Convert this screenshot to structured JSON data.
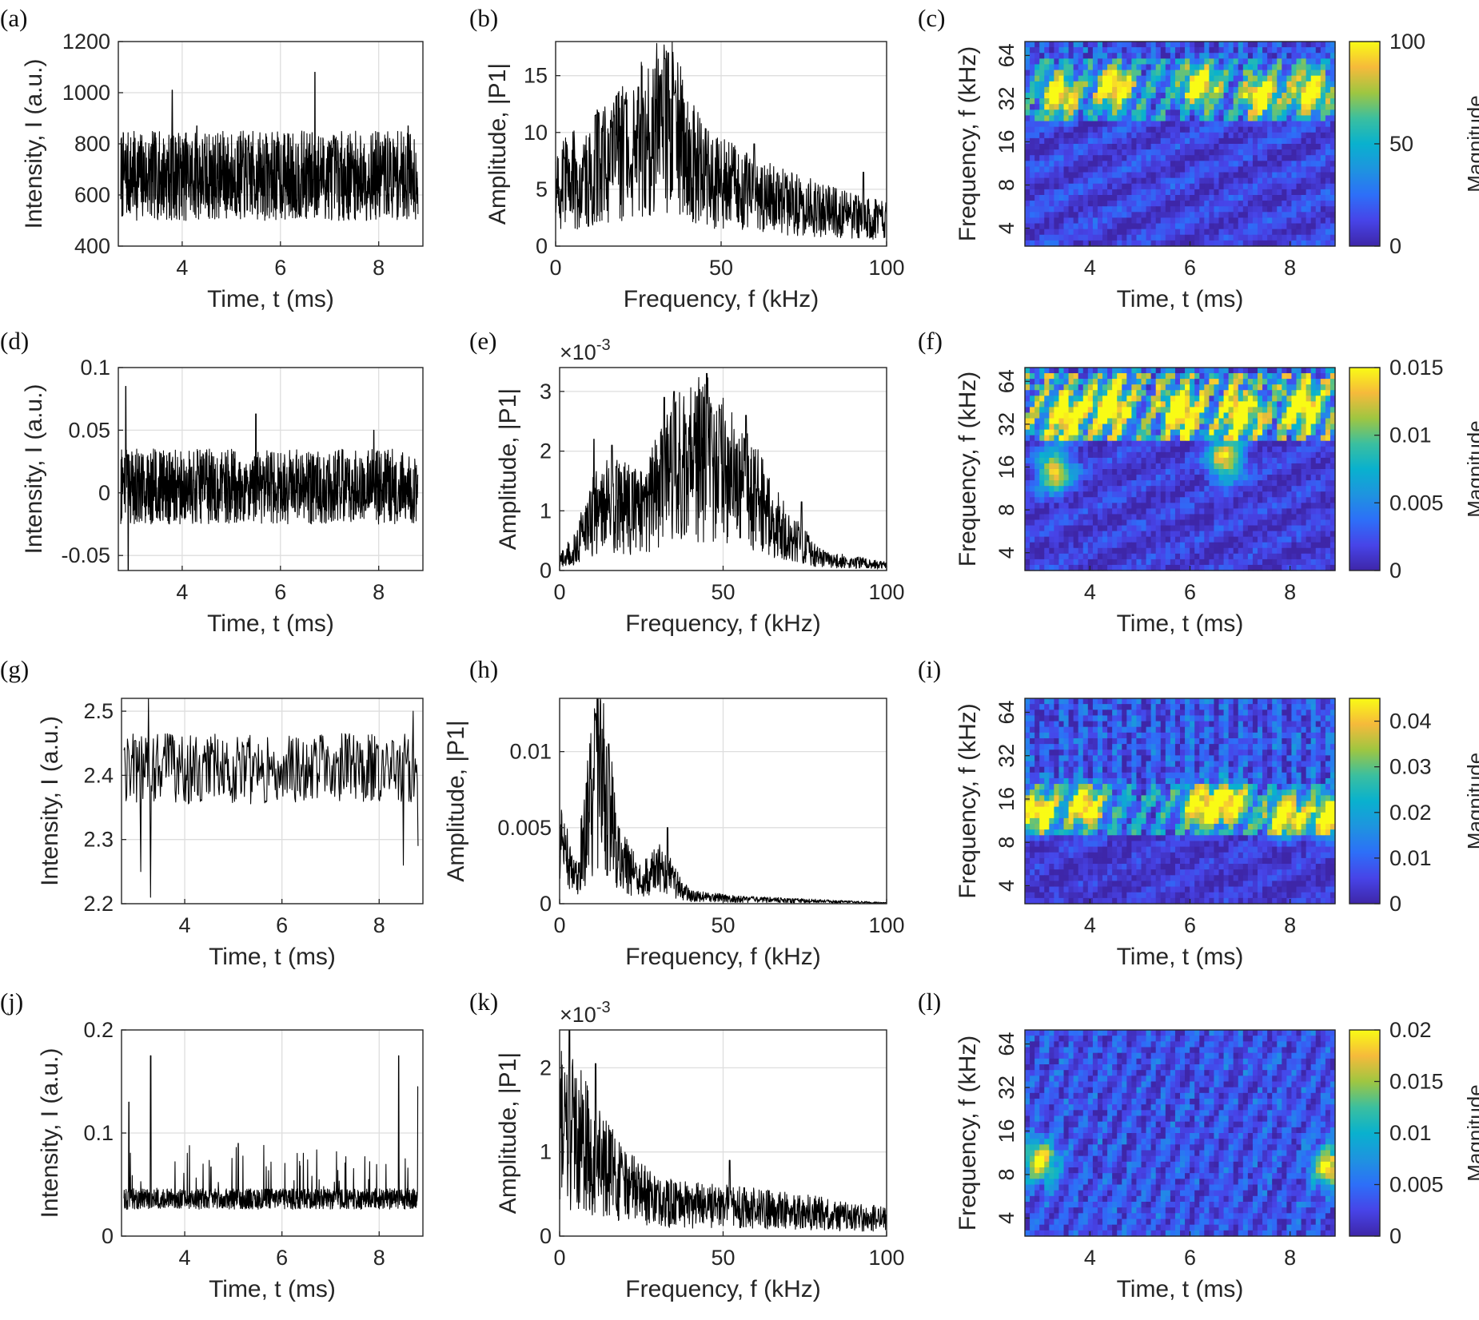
{
  "chart_data": [
    {
      "id": "a",
      "type": "line",
      "panel_label": "(a)",
      "xlabel": "Time, t (ms)",
      "ylabel": "Intensity, I (a.u.)",
      "xlim": [
        2.7,
        8.9
      ],
      "ylim": [
        400,
        1200
      ],
      "xticks": [
        4,
        6,
        8
      ],
      "yticks": [
        400,
        600,
        800,
        1000,
        1200
      ],
      "grid": true,
      "series": [
        {
          "baseline": 675,
          "amplitude": 175,
          "noise": "dense",
          "peaks": [
            [
              3.8,
              1010
            ],
            [
              6.7,
              1080
            ],
            [
              4.3,
              870
            ],
            [
              8.6,
              870
            ]
          ],
          "min": 500
        }
      ]
    },
    {
      "id": "b",
      "type": "line",
      "panel_label": "(b)",
      "xlabel": "Frequency, f (kHz)",
      "ylabel": "Amplitude, |P1|",
      "xlim": [
        0,
        100
      ],
      "ylim": [
        0,
        18
      ],
      "xticks": [
        0,
        50,
        100
      ],
      "yticks": [
        0,
        5,
        10,
        15
      ],
      "grid": true,
      "series": [
        {
          "envelope": [
            [
              0,
              5
            ],
            [
              10,
              6.5
            ],
            [
              20,
              8
            ],
            [
              34,
              11
            ],
            [
              45,
              6
            ],
            [
              60,
              4.5
            ],
            [
              80,
              3.2
            ],
            [
              100,
              2.2
            ]
          ],
          "peaks": [
            [
              12,
              11.5
            ],
            [
              21,
              12.5
            ],
            [
              25,
              14
            ],
            [
              33,
              16.5
            ],
            [
              34,
              17
            ],
            [
              36,
              13.5
            ],
            [
              60,
              9
            ],
            [
              93,
              6.5
            ]
          ]
        }
      ]
    },
    {
      "id": "c",
      "type": "heatmap",
      "panel_label": "(c)",
      "xlabel": "Time, t (ms)",
      "ylabel": "Frequency, f (kHz)",
      "xlim": [
        2.7,
        8.9
      ],
      "ylim": [
        3,
        80
      ],
      "yscale": "log2",
      "xticks": [
        4,
        6,
        8
      ],
      "yticks": [
        4,
        8,
        16,
        32,
        64
      ],
      "clim": [
        0,
        100
      ],
      "cticks": [
        0,
        50,
        100
      ],
      "clabel": "Magnitude",
      "pattern": {
        "band_lo": 22,
        "band_hi": 60,
        "band_level": 0.6,
        "low_level": 0.18,
        "hot": [
          [
            3.4,
            34
          ],
          [
            4.5,
            38
          ],
          [
            6.2,
            40
          ],
          [
            7.4,
            34
          ],
          [
            8.4,
            36
          ]
        ]
      }
    },
    {
      "id": "d",
      "type": "line",
      "panel_label": "(d)",
      "xlabel": "Time, t (ms)",
      "ylabel": "Intensity, I (a.u.)",
      "xlim": [
        2.7,
        8.9
      ],
      "ylim": [
        -0.062,
        0.1
      ],
      "xticks": [
        4,
        6,
        8
      ],
      "yticks": [
        -0.05,
        0,
        0.05,
        0.1
      ],
      "grid": true,
      "series": [
        {
          "baseline": 0.005,
          "amplitude": 0.03,
          "noise": "dense",
          "peaks": [
            [
              2.85,
              0.085
            ],
            [
              5.5,
              0.063
            ],
            [
              7.9,
              0.05
            ],
            [
              2.9,
              -0.062
            ]
          ]
        }
      ]
    },
    {
      "id": "e",
      "type": "line",
      "panel_label": "(e)",
      "xlabel": "Frequency, f (kHz)",
      "ylabel": "Amplitude, |P1|",
      "xlim": [
        0,
        100
      ],
      "ylim": [
        0,
        3.4
      ],
      "xticks": [
        0,
        50,
        100
      ],
      "yticks": [
        0,
        1,
        2,
        3
      ],
      "grid": true,
      "multiplier": "×10-3",
      "series": [
        {
          "envelope": [
            [
              0,
              0.15
            ],
            [
              5,
              0.4
            ],
            [
              12,
              1.1
            ],
            [
              25,
              1
            ],
            [
              35,
              1.7
            ],
            [
              45,
              1.9
            ],
            [
              60,
              1.2
            ],
            [
              70,
              0.6
            ],
            [
              80,
              0.2
            ],
            [
              100,
              0.08
            ]
          ],
          "peaks": [
            [
              10.5,
              2.2
            ],
            [
              16,
              2.1
            ],
            [
              32,
              2.9
            ],
            [
              35,
              3.0
            ],
            [
              45,
              3.3
            ],
            [
              49,
              2.7
            ],
            [
              57,
              2.6
            ],
            [
              74,
              1.15
            ]
          ]
        }
      ]
    },
    {
      "id": "f",
      "type": "heatmap",
      "panel_label": "(f)",
      "xlabel": "Time, t (ms)",
      "ylabel": "Frequency, f (kHz)",
      "xlim": [
        2.7,
        8.9
      ],
      "ylim": [
        3,
        80
      ],
      "yscale": "log2",
      "xticks": [
        4,
        6,
        8
      ],
      "yticks": [
        4,
        8,
        16,
        32,
        64
      ],
      "clim": [
        0,
        0.015
      ],
      "cticks": [
        0,
        0.005,
        0.01,
        0.015
      ],
      "clabel": "Magnitude",
      "pattern": {
        "band_lo": 24,
        "band_hi": 70,
        "band_level": 0.85,
        "low_level": 0.15,
        "hot": [
          [
            3.5,
            36
          ],
          [
            4.4,
            42
          ],
          [
            5.8,
            40
          ],
          [
            7.0,
            38
          ],
          [
            8.3,
            42
          ],
          [
            3.3,
            15
          ],
          [
            6.7,
            18
          ]
        ]
      }
    },
    {
      "id": "g",
      "type": "line",
      "panel_label": "(g)",
      "xlabel": "Time, t (ms)",
      "ylabel": "Intensity, I (a.u.)",
      "xlim": [
        2.7,
        8.9
      ],
      "ylim": [
        2.2,
        2.52
      ],
      "xticks": [
        4,
        6,
        8
      ],
      "yticks": [
        2.2,
        2.3,
        2.4,
        2.5
      ],
      "grid": true,
      "series": [
        {
          "baseline": 2.41,
          "amplitude": 0.055,
          "noise": "oscillating",
          "peaks": [
            [
              3.3,
              2.21
            ],
            [
              3.1,
              2.25
            ],
            [
              8.5,
              2.26
            ],
            [
              8.8,
              2.29
            ],
            [
              3.25,
              2.52
            ],
            [
              8.7,
              2.5
            ]
          ]
        }
      ]
    },
    {
      "id": "h",
      "type": "line",
      "panel_label": "(h)",
      "xlabel": "Frequency, f (kHz)",
      "ylabel": "Amplitude, |P1|",
      "xlim": [
        0,
        100
      ],
      "ylim": [
        0,
        0.0135
      ],
      "xticks": [
        0,
        50,
        100
      ],
      "yticks": [
        0,
        0.005,
        0.01
      ],
      "grid": true,
      "series": [
        {
          "envelope": [
            [
              0,
              0.004
            ],
            [
              5,
              0.0015
            ],
            [
              10,
              0.007
            ],
            [
              13,
              0.009
            ],
            [
              18,
              0.003
            ],
            [
              25,
              0.0015
            ],
            [
              30,
              0.0025
            ],
            [
              40,
              0.0005
            ],
            [
              55,
              0.0003
            ],
            [
              100,
              5e-05
            ]
          ],
          "peaks": [
            [
              11,
              0.0125
            ],
            [
              11.5,
              0.0135
            ],
            [
              15,
              0.0105
            ],
            [
              33,
              0.005
            ]
          ]
        }
      ]
    },
    {
      "id": "i",
      "type": "heatmap",
      "panel_label": "(i)",
      "xlabel": "Time, t (ms)",
      "ylabel": "Frequency, f (kHz)",
      "xlim": [
        2.7,
        8.9
      ],
      "ylim": [
        3,
        80
      ],
      "yscale": "log2",
      "xticks": [
        4,
        6,
        8
      ],
      "yticks": [
        4,
        8,
        16,
        32,
        64
      ],
      "clim": [
        0,
        0.045
      ],
      "cticks": [
        0,
        0.01,
        0.02,
        0.03,
        0.04
      ],
      "clabel": "Magnitude",
      "pattern": {
        "band_lo": 9,
        "band_hi": 20,
        "band_level": 0.6,
        "low_level": 0.12,
        "hot": [
          [
            3.0,
            13
          ],
          [
            3.9,
            14
          ],
          [
            6.2,
            14
          ],
          [
            6.8,
            15
          ],
          [
            7.9,
            12
          ],
          [
            8.75,
            12
          ]
        ]
      }
    },
    {
      "id": "j",
      "type": "line",
      "panel_label": "(j)",
      "xlabel": "Time, t (ms)",
      "ylabel": "Intensity, I (a.u.)",
      "xlim": [
        2.7,
        8.9
      ],
      "ylim": [
        0,
        0.2
      ],
      "xticks": [
        4,
        6,
        8
      ],
      "yticks": [
        0,
        0.1,
        0.2
      ],
      "grid": true,
      "series": [
        {
          "baseline": 0.035,
          "amplitude": 0.02,
          "noise": "spiky",
          "peaks": [
            [
              3.3,
              0.175
            ],
            [
              2.85,
              0.13
            ],
            [
              8.4,
              0.175
            ],
            [
              8.8,
              0.145
            ],
            [
              5.1,
              0.09
            ]
          ]
        }
      ]
    },
    {
      "id": "k",
      "type": "line",
      "panel_label": "(k)",
      "xlabel": "Frequency, f (kHz)",
      "ylabel": "Amplitude, |P1|",
      "xlim": [
        0,
        100
      ],
      "ylim": [
        0,
        2.45
      ],
      "xticks": [
        0,
        50,
        100
      ],
      "yticks": [
        0,
        1,
        2
      ],
      "grid": true,
      "multiplier": "×10-3",
      "series": [
        {
          "envelope": [
            [
              0,
              1.3
            ],
            [
              5,
              1.2
            ],
            [
              12,
              0.9
            ],
            [
              20,
              0.6
            ],
            [
              30,
              0.4
            ],
            [
              50,
              0.35
            ],
            [
              70,
              0.3
            ],
            [
              100,
              0.2
            ]
          ],
          "peaks": [
            [
              3,
              2.45
            ],
            [
              11,
              2.05
            ],
            [
              16,
              1.2
            ],
            [
              52,
              0.9
            ]
          ]
        }
      ]
    },
    {
      "id": "l",
      "type": "heatmap",
      "panel_label": "(l)",
      "xlabel": "Time, t (ms)",
      "ylabel": "Frequency, f (kHz)",
      "xlim": [
        2.7,
        8.9
      ],
      "ylim": [
        3,
        80
      ],
      "yscale": "log2",
      "xticks": [
        4,
        6,
        8
      ],
      "yticks": [
        4,
        8,
        16,
        32,
        64
      ],
      "clim": [
        0,
        0.02
      ],
      "cticks": [
        0,
        0.005,
        0.01,
        0.015,
        0.02
      ],
      "clabel": "Magnitude",
      "pattern": {
        "band_lo": 3,
        "band_hi": 80,
        "band_level": 0.28,
        "low_level": 0.2,
        "hot": [
          [
            8.8,
            9
          ],
          [
            3.0,
            10
          ]
        ]
      }
    }
  ]
}
